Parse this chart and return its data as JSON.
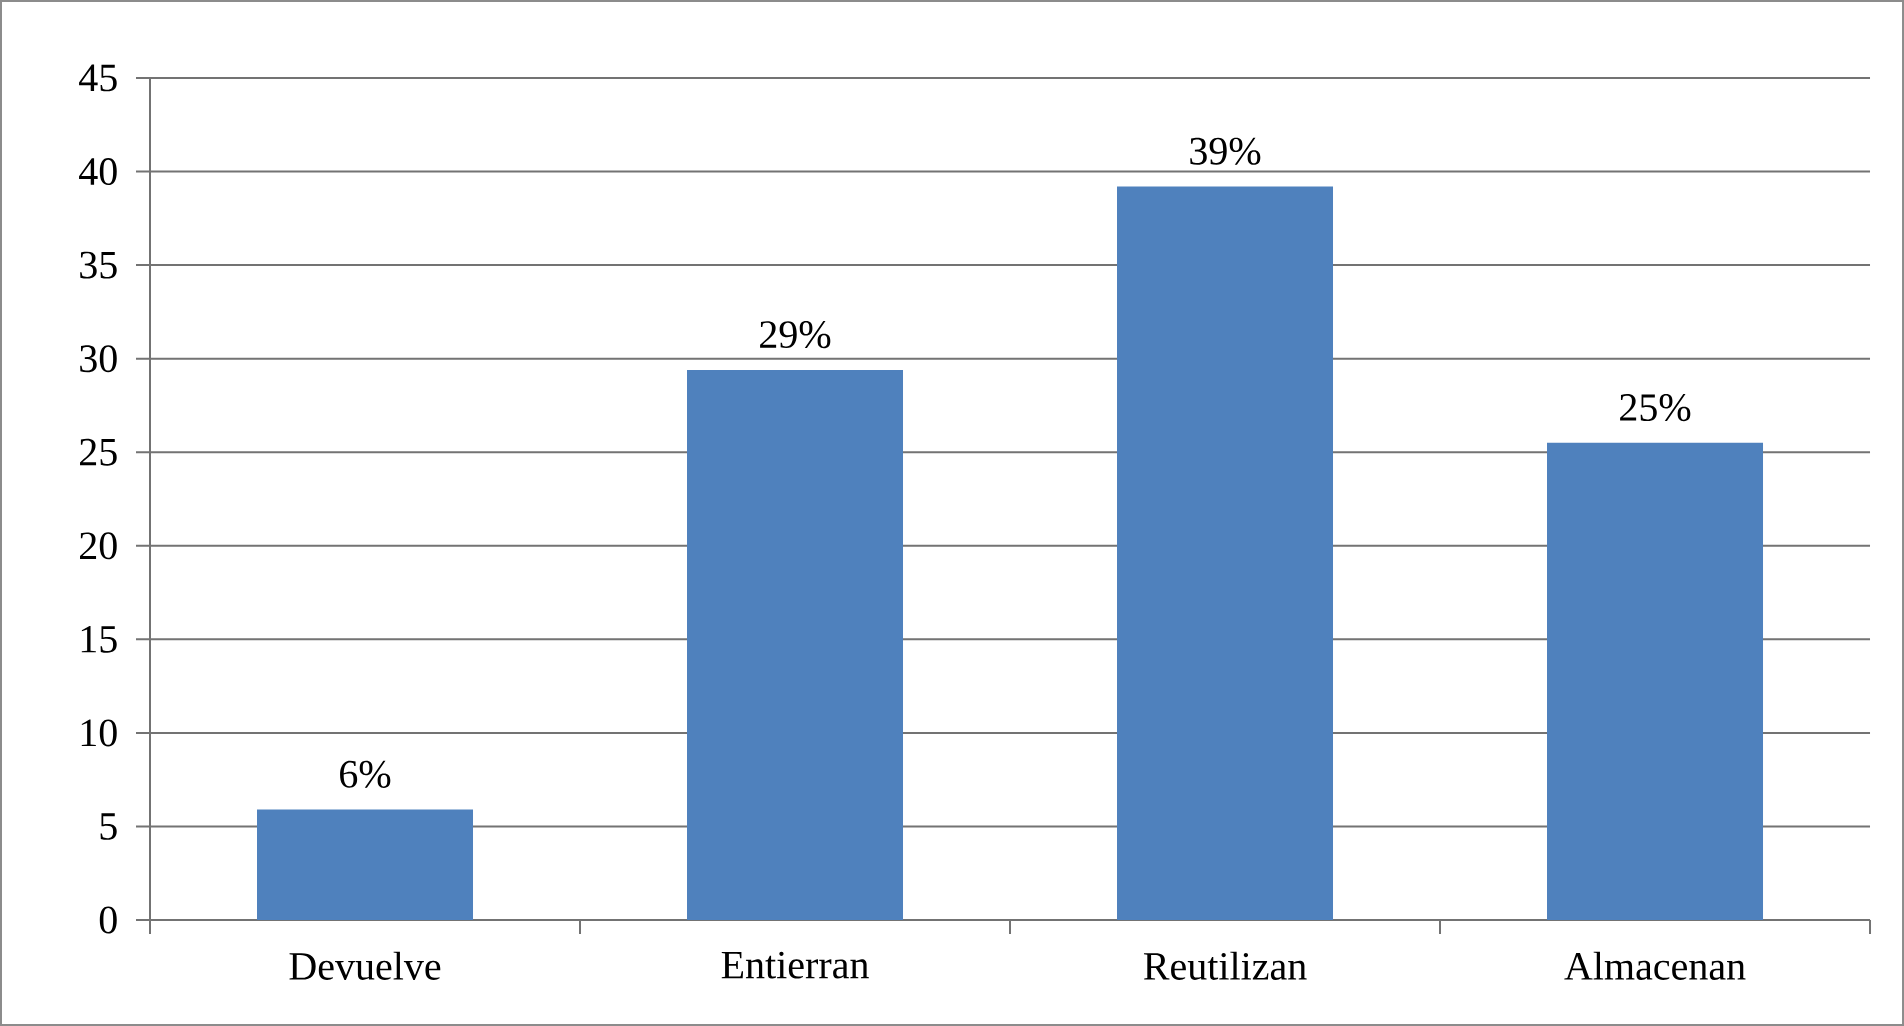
{
  "chart_data": {
    "type": "bar",
    "categories": [
      "Devuelve",
      "Entierran",
      "Reutilizan",
      "Almacenan"
    ],
    "values": [
      5.9,
      29.4,
      39.2,
      25.5
    ],
    "value_labels": [
      "6%",
      "29%",
      "39%",
      "25%"
    ],
    "color": "#4f81bd",
    "ylim": [
      0,
      45
    ],
    "yticks": [
      0,
      5,
      10,
      15,
      20,
      25,
      30,
      35,
      40,
      45
    ],
    "grid": "y"
  }
}
